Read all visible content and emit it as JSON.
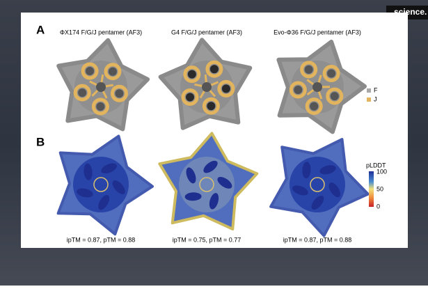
{
  "watermark": "science.",
  "panel_a": {
    "label": "A",
    "titles": [
      "ΦX174 F/G/J pentamer (AF3)",
      "G4 F/G/J pentamer (AF3)",
      "Evo-Φ36 F/G/J pentamer (AF3)"
    ],
    "legend": [
      "F",
      "J"
    ]
  },
  "panel_b": {
    "label": "B",
    "captions": [
      "ipTM = 0.87, pTM = 0.88",
      "ipTM = 0.75, pTM = 0.77",
      "ipTM = 0.87, pTM = 0.88"
    ],
    "colorbar": {
      "title": "pLDDT",
      "ticks": [
        "100",
        "50",
        "0"
      ]
    }
  }
}
